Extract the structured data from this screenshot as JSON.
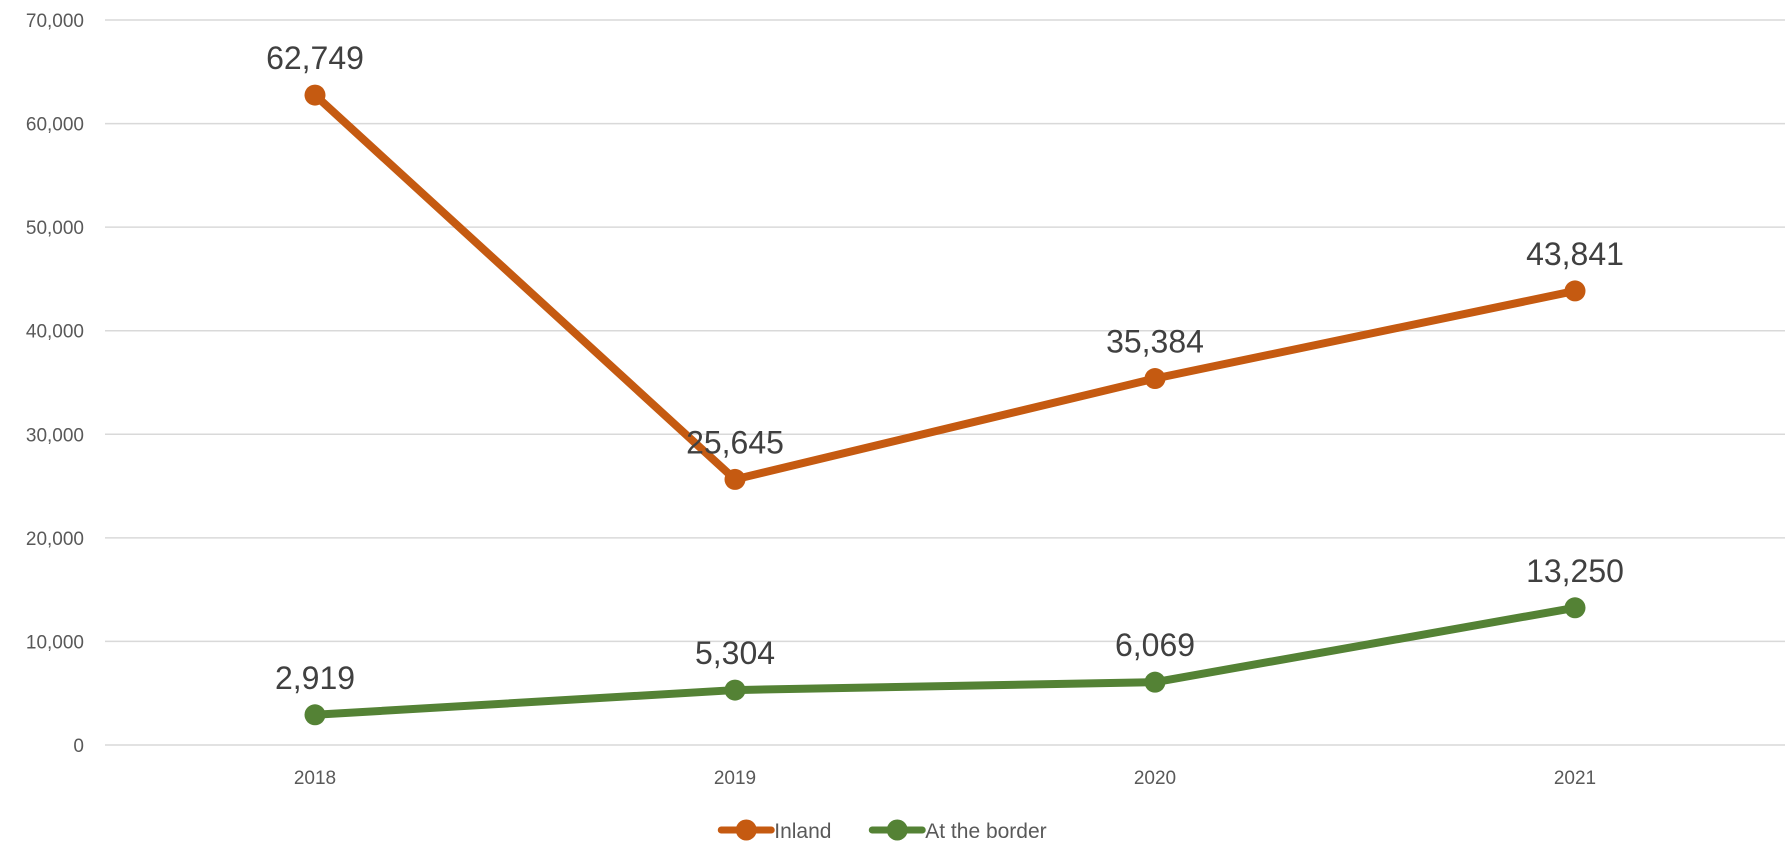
{
  "chart_data": {
    "type": "line",
    "title": "",
    "xlabel": "",
    "ylabel": "",
    "categories": [
      "2018",
      "2019",
      "2020",
      "2021"
    ],
    "ylim": [
      0,
      70000
    ],
    "y_ticks": [
      0,
      10000,
      20000,
      30000,
      40000,
      50000,
      60000,
      70000
    ],
    "y_tick_labels": [
      "0",
      "10,000",
      "20,000",
      "30,000",
      "40,000",
      "50,000",
      "60,000",
      "70,000"
    ],
    "grid": true,
    "legend_position": "bottom",
    "series": [
      {
        "name": "Inland",
        "color": "#C55A11",
        "values": [
          62749,
          25645,
          35384,
          43841
        ],
        "labels": [
          "62,749",
          "25,645",
          "35,384",
          "43,841"
        ]
      },
      {
        "name": "At the border",
        "color": "#548235",
        "values": [
          2919,
          5304,
          6069,
          13250
        ],
        "labels": [
          "2,919",
          "5,304",
          "6,069",
          "13,250"
        ]
      }
    ]
  }
}
